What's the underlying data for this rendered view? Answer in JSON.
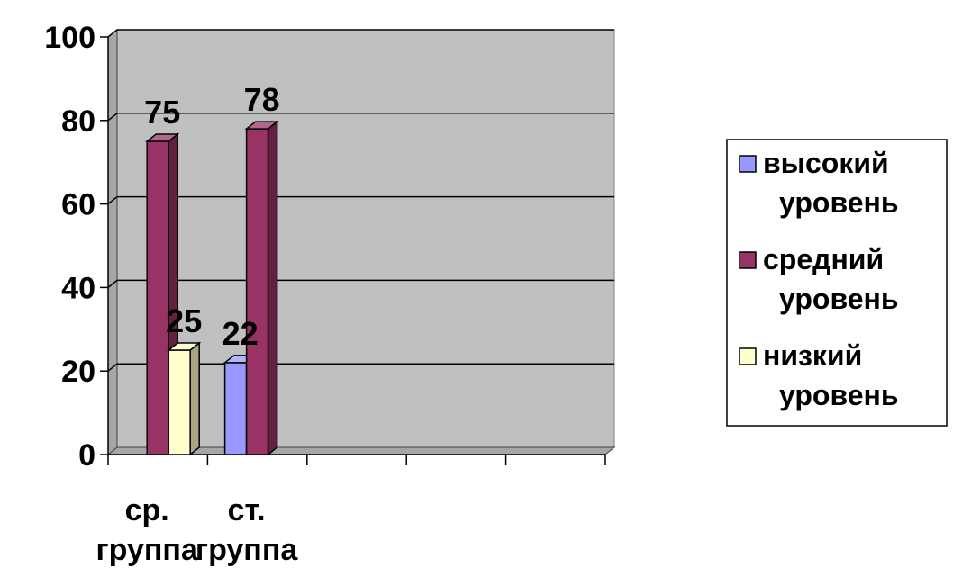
{
  "chart_data": {
    "type": "bar",
    "title": "",
    "xlabel": "",
    "ylabel": "",
    "ylim": [
      0,
      100
    ],
    "yticks": [
      0,
      20,
      40,
      60,
      80,
      100
    ],
    "grid": true,
    "legend_position": "right",
    "category_slots": 5,
    "categories": [
      "ср. группа",
      "ст. группа"
    ],
    "category_lines": [
      [
        "ср.",
        "группа"
      ],
      [
        "ст.",
        "группа"
      ]
    ],
    "series": [
      {
        "name": "высокий уровень",
        "name_lines": [
          "высокий",
          "уровень"
        ],
        "color": "#9999ff",
        "values": [
          null,
          22
        ]
      },
      {
        "name": "средний уровень",
        "name_lines": [
          "средний",
          "уровень"
        ],
        "color": "#993366",
        "values": [
          75,
          78
        ]
      },
      {
        "name": "низкий уровень",
        "name_lines": [
          "низкий",
          "уровень"
        ],
        "color": "#ffffcc",
        "values": [
          25,
          null
        ]
      }
    ],
    "data_labels": [
      {
        "series": 1,
        "category": 0,
        "text": "75"
      },
      {
        "series": 2,
        "category": 0,
        "text": "25"
      },
      {
        "series": 0,
        "category": 1,
        "text": "22"
      },
      {
        "series": 1,
        "category": 1,
        "text": "78"
      }
    ]
  }
}
